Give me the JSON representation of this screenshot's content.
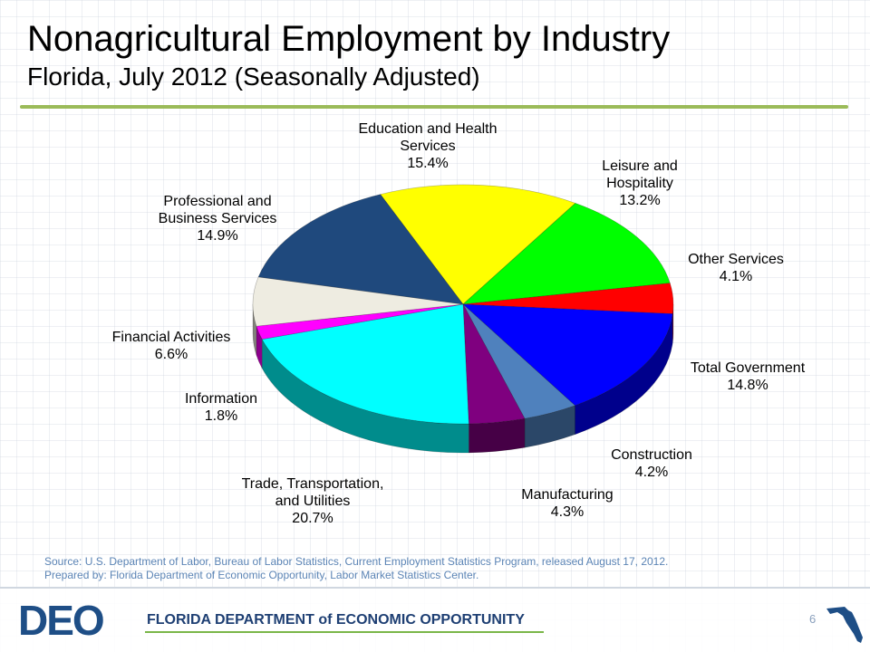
{
  "title": "Nonagricultural Employment by Industry",
  "subtitle": "Florida, July 2012 (Seasonally Adjusted)",
  "source_line1": "Source:  U.S. Department of Labor, Bureau of Labor Statistics, Current Employment Statistics Program, released August 17,  2012.",
  "source_line2": "Prepared by:  Florida Department of Economic Opportunity, Labor Market Statistics Center.",
  "page_number": "6",
  "footer": {
    "logo_text": "DEO",
    "agency_name": "FLORIDA DEPARTMENT of ECONOMIC OPPORTUNITY"
  },
  "chart_data": {
    "type": "pie",
    "title": "Nonagricultural Employment by Industry",
    "subtitle": "Florida, July 2012 (Seasonally Adjusted)",
    "unit": "%",
    "slices": [
      {
        "key": "education",
        "lines": [
          "Education and Health",
          "Services"
        ],
        "value": 15.4,
        "label": "15.4%",
        "color": "#ffff00"
      },
      {
        "key": "leisure",
        "lines": [
          "Leisure and",
          "Hospitality"
        ],
        "value": 13.2,
        "label": "13.2%",
        "color": "#00ff00"
      },
      {
        "key": "other",
        "lines": [
          "Other Services"
        ],
        "value": 4.1,
        "label": "4.1%",
        "color": "#ff0000"
      },
      {
        "key": "government",
        "lines": [
          "Total Government"
        ],
        "value": 14.8,
        "label": "14.8%",
        "color": "#0000ff"
      },
      {
        "key": "construction",
        "lines": [
          "Construction"
        ],
        "value": 4.2,
        "label": "4.2%",
        "color": "#4f81bd"
      },
      {
        "key": "manufacturing",
        "lines": [
          "Manufacturing"
        ],
        "value": 4.3,
        "label": "4.3%",
        "color": "#7f007f"
      },
      {
        "key": "trade",
        "lines": [
          "Trade, Transportation,",
          "and Utilities"
        ],
        "value": 20.7,
        "label": "20.7%",
        "color": "#00ffff"
      },
      {
        "key": "information",
        "lines": [
          "Information"
        ],
        "value": 1.8,
        "label": "1.8%",
        "color": "#ff00ff"
      },
      {
        "key": "financial",
        "lines": [
          "Financial Activities"
        ],
        "value": 6.6,
        "label": "6.6%",
        "color": "#eeece1"
      },
      {
        "key": "professional",
        "lines": [
          "Professional and",
          "Business Services"
        ],
        "value": 14.9,
        "label": "14.9%",
        "color": "#1f497d"
      }
    ]
  }
}
